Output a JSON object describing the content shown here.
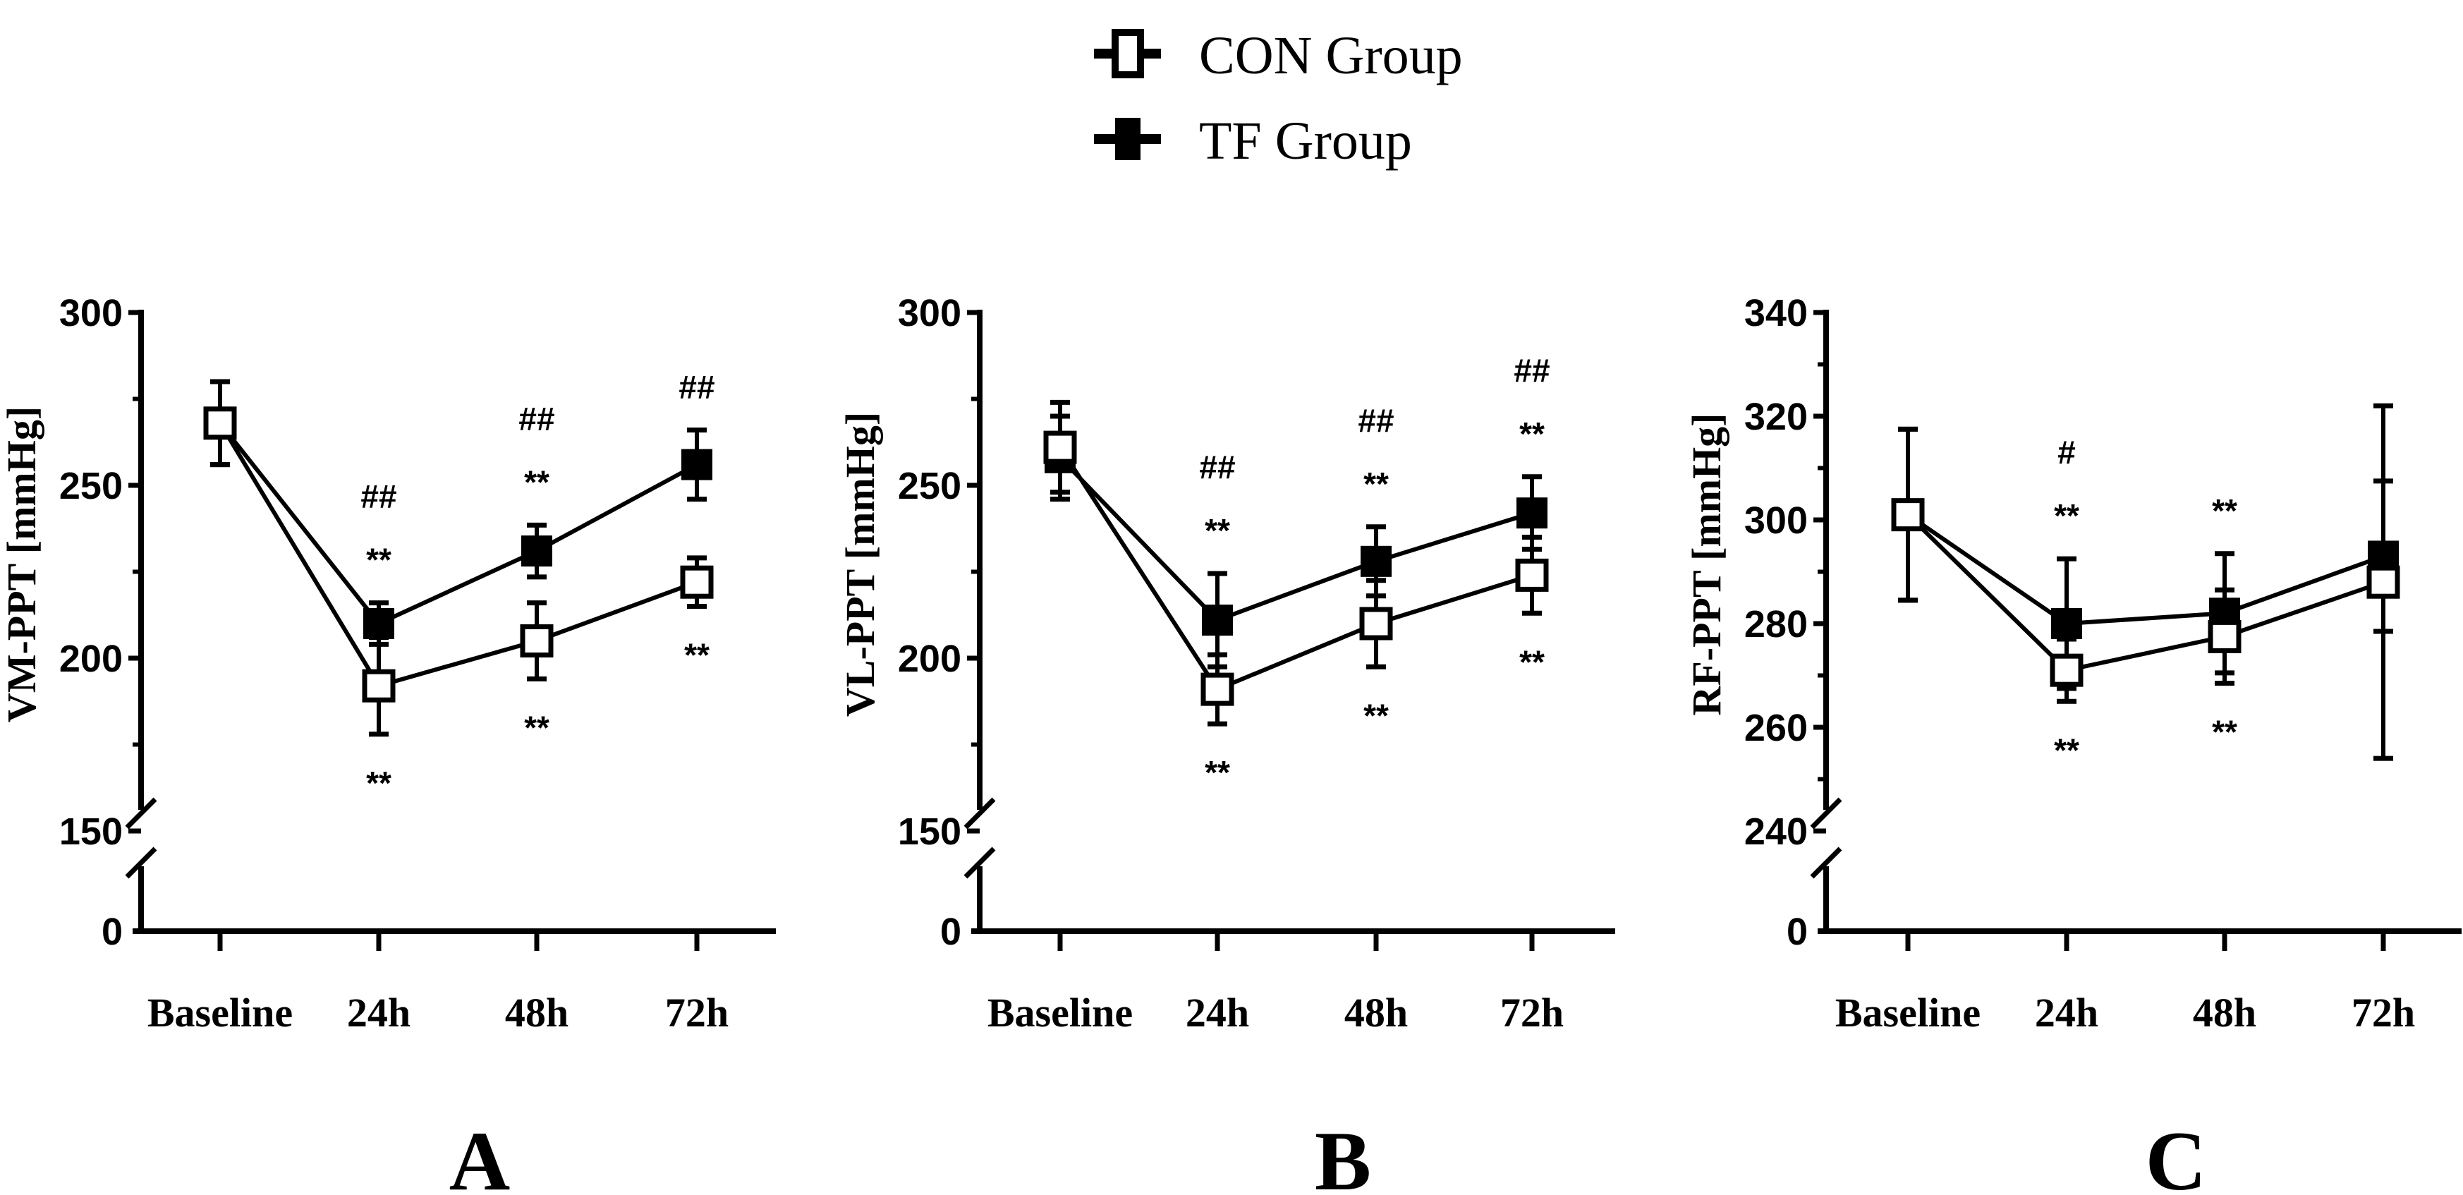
{
  "legend": [
    {
      "name": "CON Group",
      "marker": "open-square"
    },
    {
      "name": "TF Group",
      "marker": "filled-square"
    }
  ],
  "colors": {
    "ink": "#000000",
    "open_fill": "#ffffff"
  },
  "chart_data": [
    {
      "type": "line",
      "panel": "A",
      "ylabel": "VM-PPT [mmHg]",
      "categories": [
        "Baseline",
        "24h",
        "48h",
        "72h"
      ],
      "ylim": [
        150,
        300
      ],
      "yticks": [
        150,
        200,
        250,
        300
      ],
      "minor_ticks": [
        175,
        225,
        275
      ],
      "axis_break": true,
      "lower_tick": 0,
      "series": [
        {
          "name": "CON Group",
          "values": [
            268,
            192,
            205,
            222
          ],
          "errors": [
            12,
            14,
            11,
            7
          ]
        },
        {
          "name": "TF Group",
          "values": [
            268,
            210,
            231,
            256
          ],
          "errors": [
            12,
            6,
            7.5,
            10
          ]
        }
      ],
      "annotations": [
        {
          "x": "24h",
          "above": [
            "##",
            "**"
          ],
          "below": [
            "**"
          ]
        },
        {
          "x": "48h",
          "above": [
            "##",
            "**"
          ],
          "below": [
            "**"
          ]
        },
        {
          "x": "72h",
          "above": [
            "##"
          ],
          "below": [
            "**"
          ]
        }
      ]
    },
    {
      "type": "line",
      "panel": "B",
      "ylabel": "VL-PPT [mmHg]",
      "categories": [
        "Baseline",
        "24h",
        "48h",
        "72h"
      ],
      "ylim": [
        150,
        300
      ],
      "yticks": [
        150,
        200,
        250,
        300
      ],
      "minor_ticks": [
        175,
        225,
        275
      ],
      "axis_break": true,
      "lower_tick": 0,
      "series": [
        {
          "name": "CON Group",
          "values": [
            261,
            191,
            210,
            224
          ],
          "errors": [
            13,
            10,
            12.5,
            11
          ]
        },
        {
          "name": "TF Group",
          "values": [
            258,
            211,
            228,
            242
          ],
          "errors": [
            12,
            13.5,
            10,
            10.5
          ]
        }
      ],
      "annotations": [
        {
          "x": "24h",
          "above": [
            "##",
            "**"
          ],
          "below": [
            "**"
          ]
        },
        {
          "x": "48h",
          "above": [
            "##",
            "**"
          ],
          "below": [
            "**"
          ]
        },
        {
          "x": "72h",
          "above": [
            "##",
            "**"
          ],
          "below": [
            "**"
          ]
        }
      ]
    },
    {
      "type": "line",
      "panel": "C",
      "ylabel": "RF-PPT [mmHg]",
      "categories": [
        "Baseline",
        "24h",
        "48h",
        "72h"
      ],
      "ylim": [
        240,
        340
      ],
      "yticks": [
        240,
        260,
        280,
        300,
        320,
        340
      ],
      "minor_ticks": [
        250,
        270,
        290,
        310,
        330
      ],
      "axis_break": true,
      "lower_tick": 0,
      "series": [
        {
          "name": "CON Group",
          "values": [
            301,
            271,
            277.5,
            288
          ],
          "errors": [
            16.5,
            6,
            9,
            34
          ]
        },
        {
          "name": "TF Group",
          "values": [
            301,
            280,
            282,
            293
          ],
          "errors": [
            16.5,
            12.5,
            11.5,
            14.5
          ]
        }
      ],
      "annotations": [
        {
          "x": "24h",
          "above": [
            "#",
            "**"
          ],
          "below": [
            "**"
          ]
        },
        {
          "x": "48h",
          "above": [
            "**"
          ],
          "below": [
            "**"
          ]
        }
      ]
    }
  ]
}
